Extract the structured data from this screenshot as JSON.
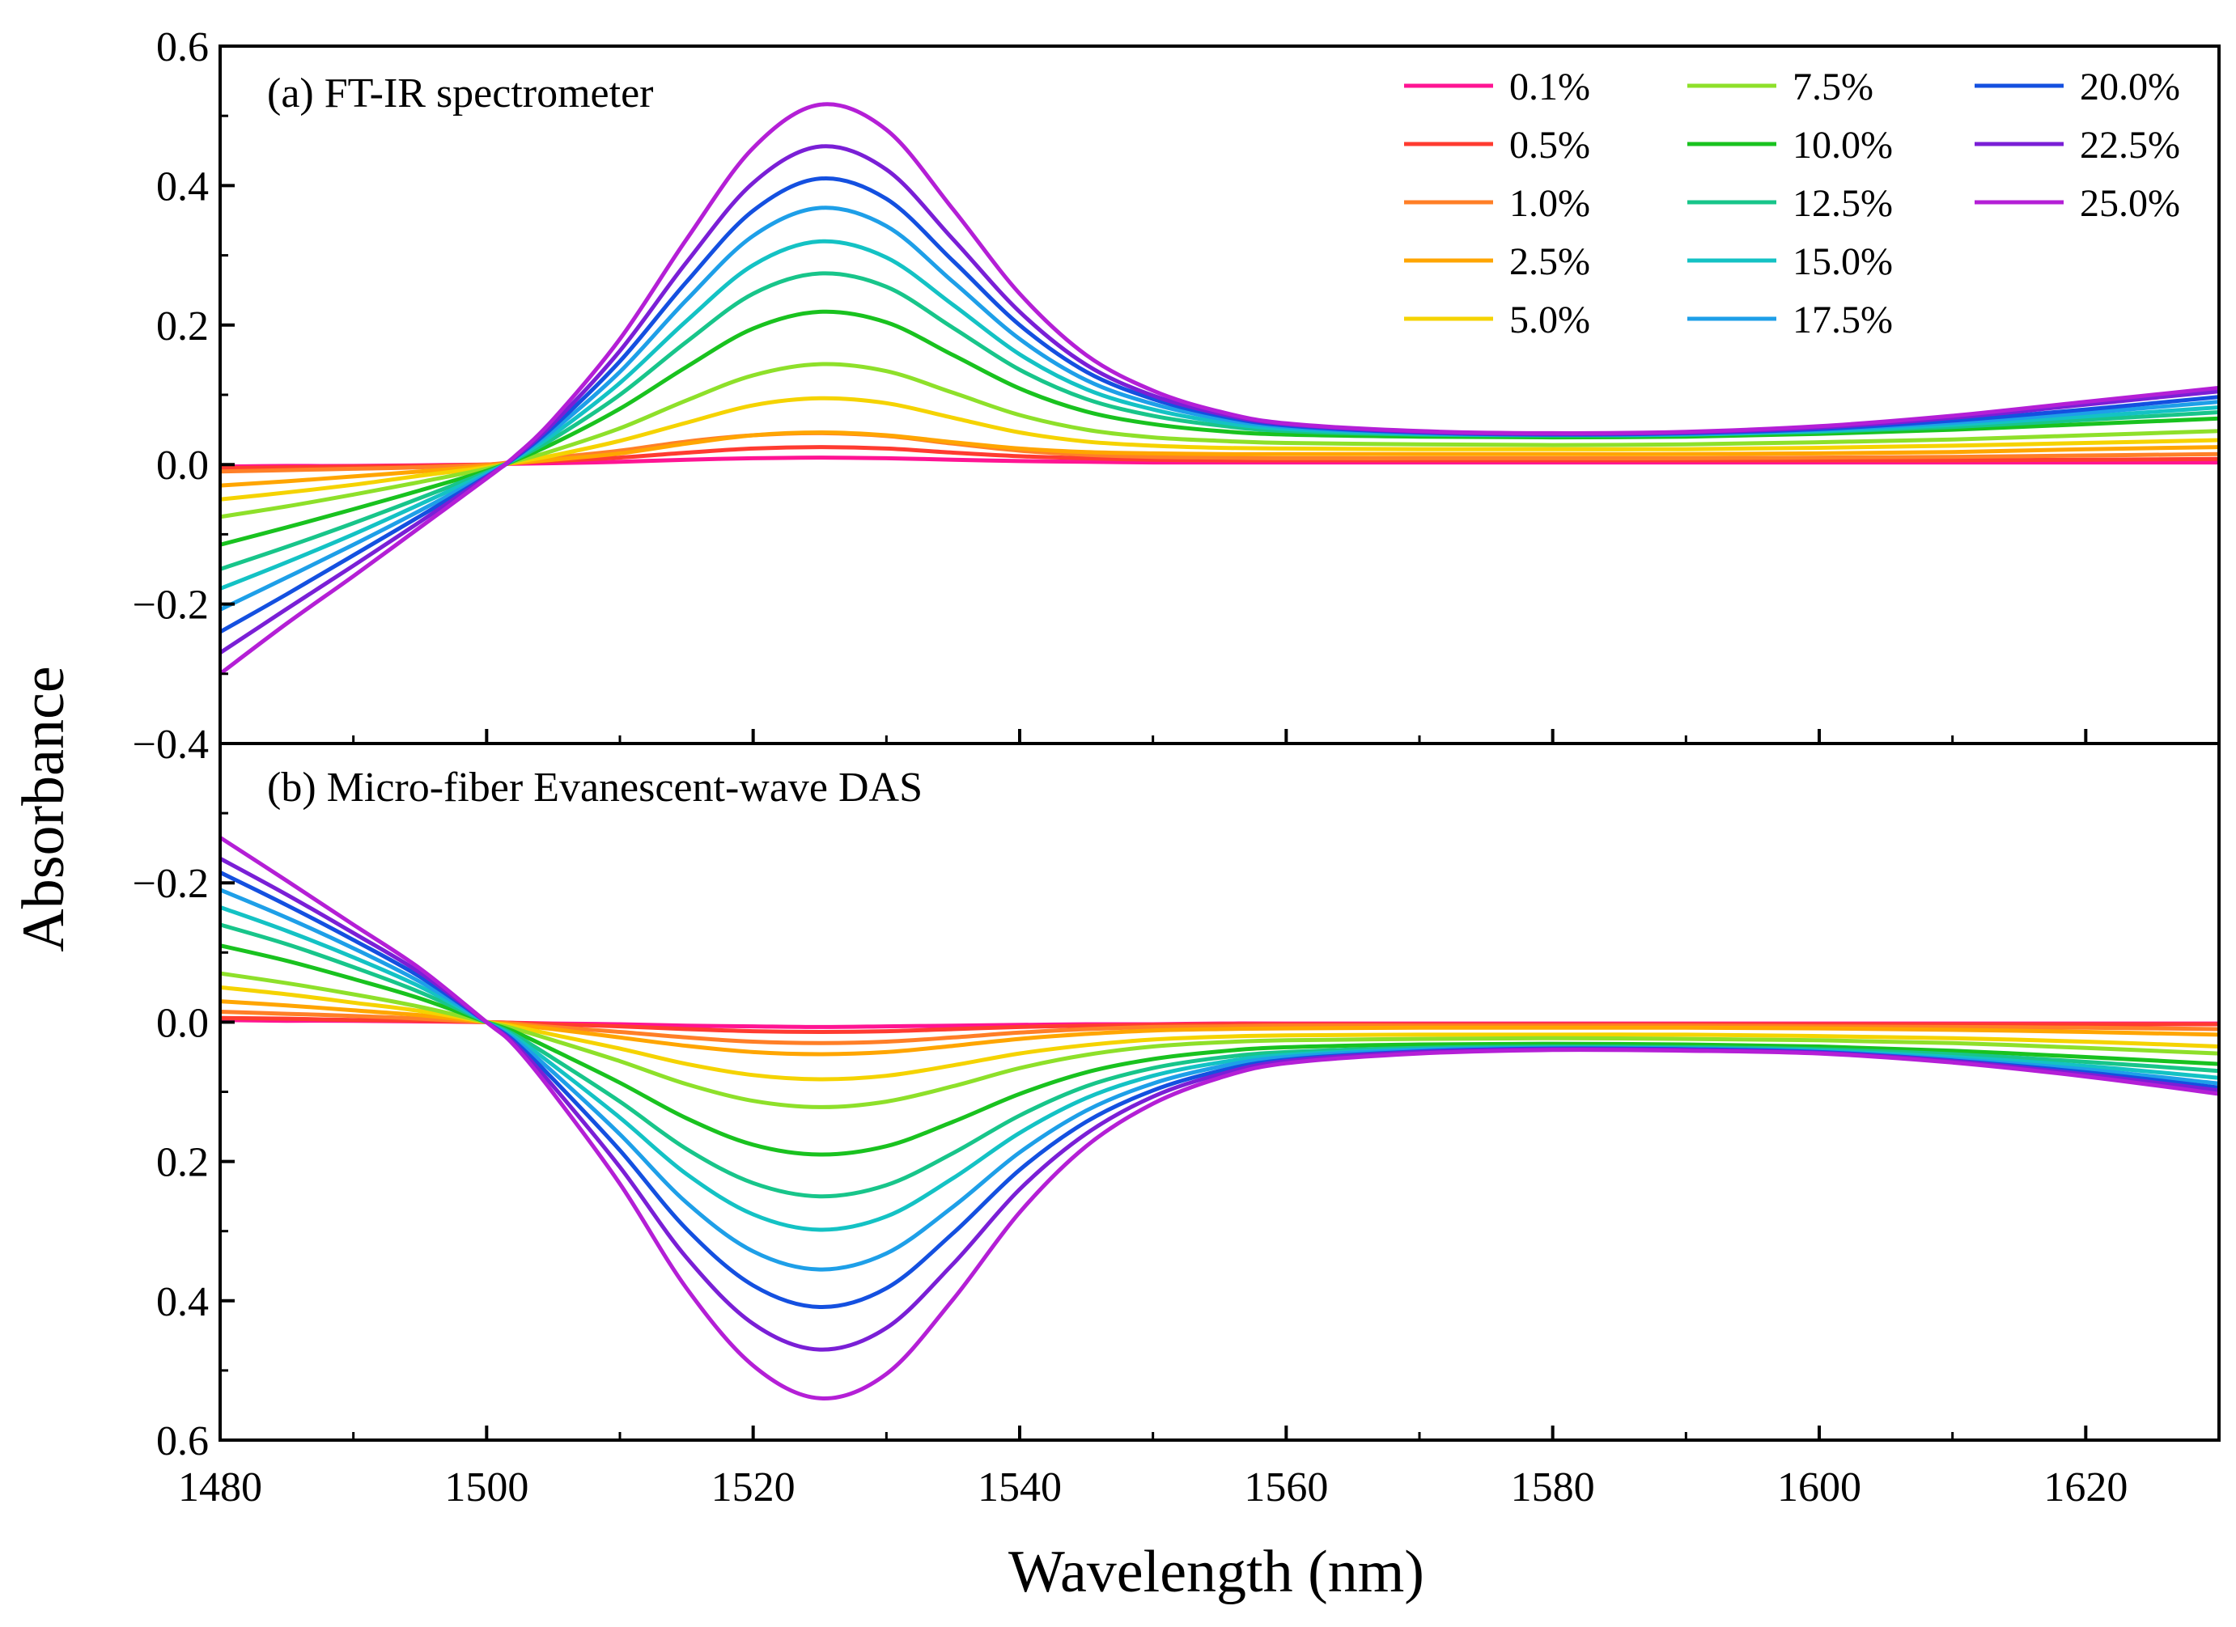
{
  "chart_data": {
    "type": "line",
    "xlabel": "Wavelength (nm)",
    "ylabel": "Absorbance",
    "xlim": [
      1480,
      1630
    ],
    "x_ticks": [
      "1480",
      "1500",
      "1520",
      "1540",
      "1560",
      "1580",
      "1600",
      "1620"
    ],
    "x_tick_values": [
      1480,
      1500,
      1520,
      1540,
      1560,
      1580,
      1600,
      1620
    ],
    "legend_position": "top-right",
    "series_labels": [
      "0.1%",
      "0.5%",
      "1.0%",
      "2.5%",
      "5.0%",
      "7.5%",
      "10.0%",
      "12.5%",
      "15.0%",
      "17.5%",
      "20.0%",
      "22.5%",
      "25.0%"
    ],
    "series_colors": [
      "#ff1493",
      "#ff3b30",
      "#ff7f27",
      "#ffa500",
      "#f5d300",
      "#8ee02a",
      "#19c21f",
      "#18c58a",
      "#14c2c4",
      "#1e9fe8",
      "#1450e0",
      "#7a1fd6",
      "#b41fd6"
    ],
    "panels": [
      {
        "label": "(a) FT-IR spectrometer",
        "ylim": [
          -0.4,
          0.6
        ],
        "y_ticks": [
          "0.6",
          "0.4",
          "0.2",
          "0.0",
          "−0.2",
          "−0.4"
        ],
        "y_tick_values": [
          0.6,
          0.4,
          0.2,
          0.0,
          -0.2,
          -0.4
        ],
        "x": [
          1480,
          1485,
          1490,
          1495,
          1500,
          1502,
          1505,
          1510,
          1515,
          1520,
          1525,
          1530,
          1535,
          1540,
          1545,
          1550,
          1555,
          1560,
          1570,
          1580,
          1590,
          1600,
          1610,
          1620,
          1630
        ],
        "series": [
          {
            "values": [
              -0.003,
              -0.002,
              -0.002,
              -0.001,
              0.0,
              0.001,
              0.002,
              0.004,
              0.007,
              0.009,
              0.01,
              0.009,
              0.007,
              0.005,
              0.004,
              0.003,
              0.003,
              0.003,
              0.003,
              0.003,
              0.003,
              0.003,
              0.003,
              0.003,
              0.003
            ]
          },
          {
            "values": [
              -0.005,
              -0.004,
              -0.003,
              -0.002,
              0.0,
              0.002,
              0.005,
              0.01,
              0.017,
              0.023,
              0.025,
              0.023,
              0.017,
              0.012,
              0.009,
              0.007,
              0.006,
              0.006,
              0.006,
              0.006,
              0.006,
              0.006,
              0.006,
              0.007,
              0.008
            ]
          },
          {
            "values": [
              -0.01,
              -0.008,
              -0.006,
              -0.004,
              0.0,
              0.004,
              0.01,
              0.02,
              0.033,
              0.042,
              0.045,
              0.041,
              0.03,
              0.02,
              0.014,
              0.011,
              0.01,
              0.009,
              0.009,
              0.009,
              0.009,
              0.01,
              0.011,
              0.013,
              0.015
            ]
          },
          {
            "values": [
              -0.03,
              -0.024,
              -0.017,
              -0.01,
              -0.002,
              0.002,
              0.007,
              0.016,
              0.03,
              0.042,
              0.046,
              0.042,
              0.032,
              0.023,
              0.018,
              0.016,
              0.015,
              0.015,
              0.015,
              0.015,
              0.015,
              0.016,
              0.018,
              0.022,
              0.025
            ]
          },
          {
            "values": [
              -0.05,
              -0.04,
              -0.029,
              -0.016,
              -0.004,
              0.003,
              0.013,
              0.034,
              0.06,
              0.085,
              0.095,
              0.088,
              0.067,
              0.046,
              0.033,
              0.027,
              0.024,
              0.023,
              0.022,
              0.022,
              0.022,
              0.024,
              0.027,
              0.031,
              0.035
            ]
          },
          {
            "values": [
              -0.075,
              -0.06,
              -0.043,
              -0.025,
              -0.006,
              0.004,
              0.02,
              0.052,
              0.092,
              0.128,
              0.144,
              0.134,
              0.103,
              0.071,
              0.05,
              0.039,
              0.034,
              0.031,
              0.029,
              0.028,
              0.029,
              0.032,
              0.036,
              0.042,
              0.048
            ]
          },
          {
            "values": [
              -0.115,
              -0.09,
              -0.064,
              -0.037,
              -0.009,
              0.005,
              0.03,
              0.08,
              0.14,
              0.195,
              0.219,
              0.204,
              0.157,
              0.109,
              0.076,
              0.058,
              0.048,
              0.043,
              0.04,
              0.039,
              0.04,
              0.044,
              0.05,
              0.058,
              0.066
            ]
          },
          {
            "values": [
              -0.15,
              -0.118,
              -0.084,
              -0.048,
              -0.011,
              0.006,
              0.037,
              0.1,
              0.176,
              0.245,
              0.274,
              0.255,
              0.196,
              0.136,
              0.094,
              0.07,
              0.056,
              0.048,
              0.043,
              0.042,
              0.043,
              0.047,
              0.054,
              0.064,
              0.075
            ]
          },
          {
            "values": [
              -0.178,
              -0.14,
              -0.1,
              -0.057,
              -0.013,
              0.007,
              0.043,
              0.117,
              0.206,
              0.286,
              0.32,
              0.297,
              0.229,
              0.158,
              0.108,
              0.079,
              0.061,
              0.051,
              0.044,
              0.042,
              0.043,
              0.048,
              0.057,
              0.069,
              0.082
            ]
          },
          {
            "values": [
              -0.208,
              -0.162,
              -0.115,
              -0.066,
              -0.015,
              0.008,
              0.049,
              0.133,
              0.236,
              0.328,
              0.368,
              0.342,
              0.262,
              0.18,
              0.121,
              0.087,
              0.066,
              0.054,
              0.045,
              0.043,
              0.044,
              0.05,
              0.06,
              0.074,
              0.09
            ]
          },
          {
            "values": [
              -0.24,
              -0.186,
              -0.13,
              -0.074,
              -0.017,
              0.008,
              0.054,
              0.148,
              0.262,
              0.364,
              0.41,
              0.381,
              0.292,
              0.2,
              0.133,
              0.094,
              0.07,
              0.056,
              0.046,
              0.043,
              0.045,
              0.051,
              0.063,
              0.079,
              0.097
            ]
          },
          {
            "values": [
              -0.27,
              -0.207,
              -0.145,
              -0.082,
              -0.018,
              0.009,
              0.059,
              0.163,
              0.29,
              0.404,
              0.456,
              0.423,
              0.323,
              0.219,
              0.143,
              0.099,
              0.073,
              0.058,
              0.047,
              0.044,
              0.046,
              0.053,
              0.067,
              0.086,
              0.105
            ]
          },
          {
            "values": [
              -0.3,
              -0.228,
              -0.16,
              -0.09,
              -0.02,
              0.01,
              0.065,
              0.18,
              0.323,
              0.454,
              0.516,
              0.48,
              0.366,
              0.245,
              0.157,
              0.106,
              0.076,
              0.059,
              0.048,
              0.045,
              0.047,
              0.055,
              0.07,
              0.09,
              0.11
            ]
          }
        ]
      },
      {
        "label": "(b) Micro-fiber Evanescent-wave DAS",
        "ylim": [
          -0.4,
          0.6
        ],
        "y_ticks": [
          "−0.2",
          "0.0",
          "0.2",
          "0.4",
          "0.6"
        ],
        "y_tick_values": [
          -0.2,
          0.0,
          0.2,
          0.4,
          0.6
        ],
        "y_inverted": true,
        "x": [
          1480,
          1485,
          1490,
          1495,
          1500,
          1502,
          1505,
          1510,
          1515,
          1520,
          1525,
          1530,
          1535,
          1540,
          1545,
          1550,
          1555,
          1560,
          1570,
          1580,
          1590,
          1600,
          1610,
          1620,
          1630
        ],
        "series": [
          {
            "values": [
              -0.003,
              -0.002,
              -0.002,
              -0.001,
              0.0,
              0.001,
              0.002,
              0.003,
              0.005,
              0.006,
              0.007,
              0.006,
              0.005,
              0.004,
              0.003,
              0.003,
              0.002,
              0.002,
              0.002,
              0.002,
              0.002,
              0.002,
              0.002,
              0.002,
              0.002
            ]
          },
          {
            "values": [
              -0.006,
              -0.005,
              -0.003,
              -0.002,
              0.0,
              0.001,
              0.003,
              0.006,
              0.01,
              0.013,
              0.014,
              0.013,
              0.01,
              0.007,
              0.005,
              0.004,
              0.003,
              0.003,
              0.003,
              0.003,
              0.003,
              0.003,
              0.003,
              0.003,
              0.003
            ]
          },
          {
            "values": [
              -0.015,
              -0.012,
              -0.009,
              -0.005,
              0.0,
              0.002,
              0.007,
              0.014,
              0.022,
              0.028,
              0.03,
              0.028,
              0.022,
              0.015,
              0.01,
              0.007,
              0.006,
              0.005,
              0.005,
              0.005,
              0.005,
              0.006,
              0.007,
              0.008,
              0.01
            ]
          },
          {
            "values": [
              -0.03,
              -0.024,
              -0.017,
              -0.01,
              0.0,
              0.004,
              0.01,
              0.022,
              0.034,
              0.043,
              0.046,
              0.043,
              0.034,
              0.024,
              0.017,
              0.012,
              0.01,
              0.009,
              0.008,
              0.008,
              0.008,
              0.009,
              0.011,
              0.014,
              0.018
            ]
          },
          {
            "values": [
              -0.05,
              -0.04,
              -0.028,
              -0.016,
              0.0,
              0.006,
              0.018,
              0.038,
              0.06,
              0.076,
              0.082,
              0.077,
              0.062,
              0.045,
              0.033,
              0.025,
              0.021,
              0.019,
              0.018,
              0.018,
              0.018,
              0.02,
              0.023,
              0.028,
              0.035
            ]
          },
          {
            "values": [
              -0.07,
              -0.056,
              -0.04,
              -0.022,
              0.0,
              0.009,
              0.026,
              0.056,
              0.089,
              0.113,
              0.122,
              0.114,
              0.092,
              0.066,
              0.047,
              0.035,
              0.029,
              0.026,
              0.024,
              0.023,
              0.024,
              0.026,
              0.03,
              0.037,
              0.045
            ]
          },
          {
            "values": [
              -0.11,
              -0.088,
              -0.062,
              -0.034,
              0.0,
              0.013,
              0.04,
              0.087,
              0.138,
              0.176,
              0.19,
              0.178,
              0.143,
              0.103,
              0.072,
              0.053,
              0.042,
              0.036,
              0.032,
              0.031,
              0.032,
              0.035,
              0.041,
              0.05,
              0.06
            ]
          },
          {
            "values": [
              -0.14,
              -0.112,
              -0.079,
              -0.043,
              0.0,
              0.017,
              0.052,
              0.114,
              0.182,
              0.231,
              0.25,
              0.234,
              0.188,
              0.134,
              0.092,
              0.066,
              0.051,
              0.043,
              0.037,
              0.035,
              0.036,
              0.039,
              0.046,
              0.057,
              0.07
            ]
          },
          {
            "values": [
              -0.165,
              -0.131,
              -0.093,
              -0.051,
              0.0,
              0.02,
              0.062,
              0.137,
              0.218,
              0.276,
              0.298,
              0.279,
              0.224,
              0.159,
              0.109,
              0.077,
              0.058,
              0.047,
              0.039,
              0.037,
              0.038,
              0.041,
              0.05,
              0.063,
              0.08
            ]
          },
          {
            "values": [
              -0.19,
              -0.15,
              -0.106,
              -0.058,
              0.0,
              0.023,
              0.072,
              0.161,
              0.259,
              0.329,
              0.355,
              0.332,
              0.265,
              0.187,
              0.127,
              0.088,
              0.064,
              0.05,
              0.04,
              0.037,
              0.038,
              0.042,
              0.053,
              0.068,
              0.088
            ]
          },
          {
            "values": [
              -0.215,
              -0.168,
              -0.118,
              -0.065,
              0.0,
              0.026,
              0.082,
              0.184,
              0.297,
              0.378,
              0.409,
              0.382,
              0.303,
              0.212,
              0.143,
              0.098,
              0.07,
              0.054,
              0.042,
              0.038,
              0.039,
              0.043,
              0.055,
              0.072,
              0.094
            ]
          },
          {
            "values": [
              -0.235,
              -0.183,
              -0.128,
              -0.071,
              0.0,
              0.029,
              0.092,
              0.208,
              0.338,
              0.433,
              0.47,
              0.439,
              0.347,
              0.24,
              0.16,
              0.107,
              0.075,
              0.056,
              0.043,
              0.039,
              0.04,
              0.044,
              0.056,
              0.075,
              0.098
            ]
          },
          {
            "values": [
              -0.265,
              -0.203,
              -0.14,
              -0.077,
              0.0,
              0.032,
              0.102,
              0.232,
              0.382,
              0.493,
              0.54,
              0.505,
              0.398,
              0.273,
              0.178,
              0.117,
              0.08,
              0.059,
              0.045,
              0.04,
              0.041,
              0.045,
              0.058,
              0.078,
              0.103
            ]
          }
        ]
      }
    ]
  }
}
